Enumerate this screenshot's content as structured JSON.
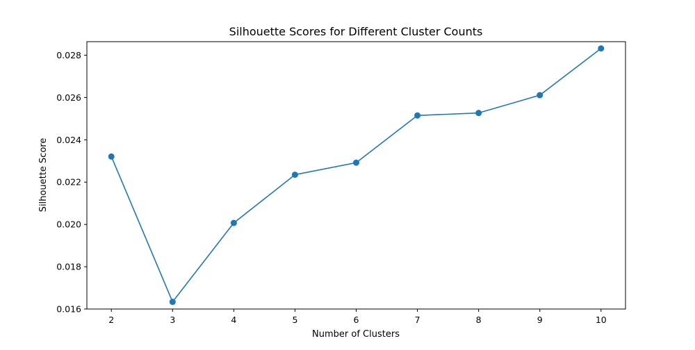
{
  "chart_data": {
    "type": "line",
    "title": "Silhouette Scores for Different Cluster Counts",
    "xlabel": "Number of Clusters",
    "ylabel": "Silhouette Score",
    "x": [
      2,
      3,
      4,
      5,
      6,
      7,
      8,
      9,
      10
    ],
    "series": [
      {
        "values": [
          0.02321,
          0.01634,
          0.02007,
          0.02235,
          0.02292,
          0.02515,
          0.02527,
          0.02611,
          0.02832
        ],
        "color": "#1f77b4",
        "marker": "circle"
      }
    ],
    "xticks": [
      "2",
      "3",
      "4",
      "5",
      "6",
      "7",
      "8",
      "9",
      "10"
    ],
    "yticks": [
      "0.016",
      "0.018",
      "0.020",
      "0.022",
      "0.024",
      "0.026",
      "0.028"
    ],
    "xlim": [
      1.6,
      10.4
    ],
    "ylim": [
      0.016,
      0.02864
    ],
    "grid": false,
    "legend": "none"
  }
}
